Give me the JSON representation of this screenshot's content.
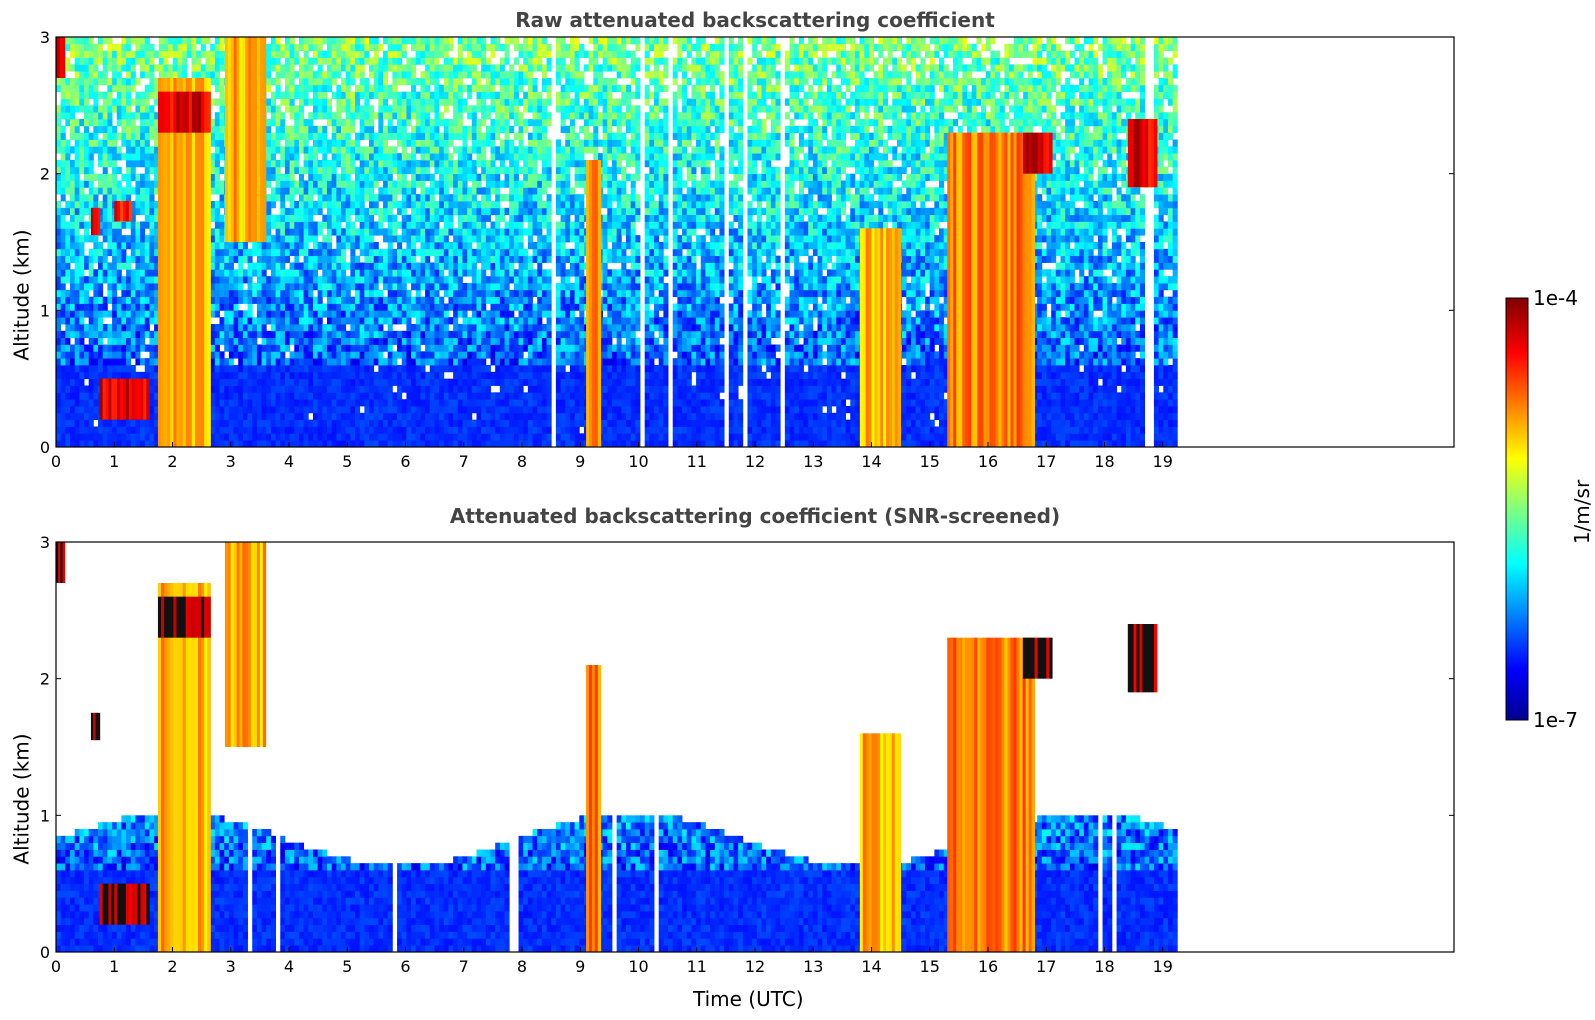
{
  "colors": {
    "background": "#ffffff",
    "axis": "#000000",
    "title": "#444444"
  },
  "colorbar": {
    "label": "1/m/sr",
    "tick_top": "1e-4",
    "tick_bottom": "1e-7",
    "colormap": "jet"
  },
  "chart_data": [
    {
      "type": "heatmap",
      "title": "Raw attenuated backscattering coefficient",
      "xlabel": "",
      "ylabel": "Altitude (km)",
      "xlim": [
        0,
        24
      ],
      "ylim": [
        0,
        3
      ],
      "xticks": [
        0,
        1,
        2,
        3,
        4,
        5,
        6,
        7,
        8,
        9,
        10,
        11,
        12,
        13,
        14,
        15,
        16,
        17,
        18,
        19
      ],
      "yticks": [
        0,
        1,
        2,
        3
      ],
      "data_extent_x": [
        0,
        19.25
      ],
      "color_scale": "log",
      "color_range": [
        1e-07,
        0.0001
      ],
      "features": [
        {
          "x": [
            0.0,
            0.15
          ],
          "y": [
            2.7,
            3.0
          ],
          "level": 0.9
        },
        {
          "x": [
            0.6,
            0.75
          ],
          "y": [
            1.55,
            1.75
          ],
          "level": 0.9
        },
        {
          "x": [
            0.75,
            1.6
          ],
          "y": [
            0.2,
            0.5
          ],
          "level": 0.9
        },
        {
          "x": [
            1.0,
            1.3
          ],
          "y": [
            1.65,
            1.8
          ],
          "level": 0.85
        },
        {
          "x": [
            1.75,
            2.65
          ],
          "y": [
            0.0,
            2.7
          ],
          "level": 0.7
        },
        {
          "x": [
            1.75,
            2.65
          ],
          "y": [
            2.3,
            2.6
          ],
          "level": 0.9
        },
        {
          "x": [
            2.9,
            3.6
          ],
          "y": [
            1.5,
            3.0
          ],
          "level": 0.7
        },
        {
          "x": [
            9.1,
            9.35
          ],
          "y": [
            0.0,
            2.1
          ],
          "level": 0.75
        },
        {
          "x": [
            13.8,
            14.5
          ],
          "y": [
            0.0,
            1.6
          ],
          "level": 0.7
        },
        {
          "x": [
            15.3,
            16.8
          ],
          "y": [
            0.0,
            2.3
          ],
          "level": 0.75
        },
        {
          "x": [
            16.6,
            17.1
          ],
          "y": [
            2.0,
            2.3
          ],
          "level": 0.9
        },
        {
          "x": [
            18.4,
            18.9
          ],
          "y": [
            1.9,
            2.4
          ],
          "level": 0.9
        }
      ]
    },
    {
      "type": "heatmap",
      "title": "Attenuated backscattering coefficient (SNR-screened)",
      "xlabel": "Time (UTC)",
      "ylabel": "Altitude (km)",
      "xlim": [
        0,
        24
      ],
      "ylim": [
        0,
        3
      ],
      "xticks": [
        0,
        1,
        2,
        3,
        4,
        5,
        6,
        7,
        8,
        9,
        10,
        11,
        12,
        13,
        14,
        15,
        16,
        17,
        18,
        19
      ],
      "yticks": [
        0,
        1,
        2,
        3
      ],
      "data_extent_x": [
        0,
        19.25
      ],
      "color_scale": "log",
      "color_range": [
        1e-07,
        0.0001
      ],
      "screened": true,
      "features": [
        {
          "x": [
            0.0,
            0.15
          ],
          "y": [
            2.7,
            3.0
          ],
          "level": 0.95
        },
        {
          "x": [
            0.6,
            0.75
          ],
          "y": [
            1.55,
            1.75
          ],
          "level": 0.95
        },
        {
          "x": [
            0.75,
            1.6
          ],
          "y": [
            0.2,
            0.5
          ],
          "level": 0.95
        },
        {
          "x": [
            1.75,
            2.65
          ],
          "y": [
            0.0,
            2.7
          ],
          "level": 0.7
        },
        {
          "x": [
            1.75,
            2.65
          ],
          "y": [
            2.3,
            2.6
          ],
          "level": 0.95
        },
        {
          "x": [
            2.9,
            3.6
          ],
          "y": [
            1.5,
            3.0
          ],
          "level": 0.7
        },
        {
          "x": [
            9.1,
            9.35
          ],
          "y": [
            0.0,
            2.1
          ],
          "level": 0.75
        },
        {
          "x": [
            13.8,
            14.5
          ],
          "y": [
            0.0,
            1.6
          ],
          "level": 0.7
        },
        {
          "x": [
            15.3,
            16.8
          ],
          "y": [
            0.0,
            2.3
          ],
          "level": 0.75
        },
        {
          "x": [
            16.6,
            17.1
          ],
          "y": [
            2.0,
            2.3
          ],
          "level": 0.95
        },
        {
          "x": [
            18.4,
            18.9
          ],
          "y": [
            1.9,
            2.4
          ],
          "level": 0.95
        }
      ]
    }
  ]
}
